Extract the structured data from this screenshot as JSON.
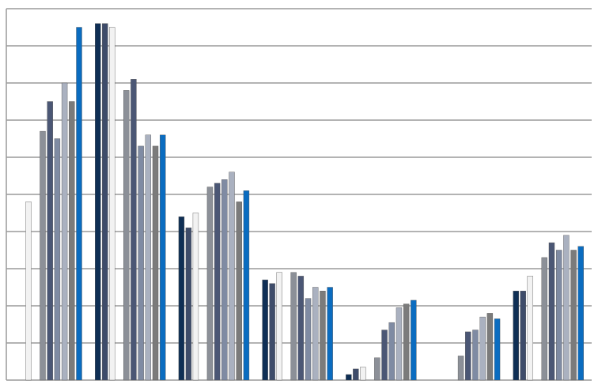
{
  "chart_data": {
    "type": "bar",
    "categories": [
      null,
      null,
      null,
      null,
      null,
      null,
      null
    ],
    "series": [
      {
        "color": "#0f2f55",
        "values": [
          0,
          9.6,
          4.4,
          2.7,
          0.15,
          0,
          2.4
        ]
      },
      {
        "color": "#3e4c6a",
        "values": [
          0,
          9.6,
          4.1,
          2.6,
          0.3,
          0,
          2.4
        ]
      },
      {
        "color": "#f2f2f2",
        "values": [
          4.8,
          9.5,
          4.5,
          2.9,
          0.35,
          0,
          2.8
        ]
      },
      {
        "color": "#8c9098",
        "values": [
          6.7,
          7.8,
          5.2,
          2.9,
          0.6,
          0.65,
          3.3
        ]
      },
      {
        "color": "#4b5775",
        "values": [
          7.5,
          8.1,
          5.3,
          2.8,
          1.35,
          1.3,
          3.7
        ]
      },
      {
        "color": "#7f8ba3",
        "values": [
          6.5,
          6.3,
          5.4,
          2.2,
          1.55,
          1.35,
          3.5
        ]
      },
      {
        "color": "#aab1c0",
        "values": [
          8.0,
          6.6,
          5.6,
          2.5,
          1.95,
          1.7,
          3.9
        ]
      },
      {
        "color": "#7b7b7b",
        "values": [
          7.5,
          6.3,
          4.8,
          2.4,
          2.05,
          1.8,
          3.5
        ]
      },
      {
        "color": "#0a6cc0",
        "values": [
          9.5,
          6.6,
          5.1,
          2.5,
          2.15,
          1.65,
          3.6
        ]
      }
    ],
    "ylim": [
      0,
      10
    ],
    "yticks": [
      0,
      1,
      2,
      3,
      4,
      5,
      6,
      7,
      8,
      9,
      10
    ],
    "grid": true
  }
}
